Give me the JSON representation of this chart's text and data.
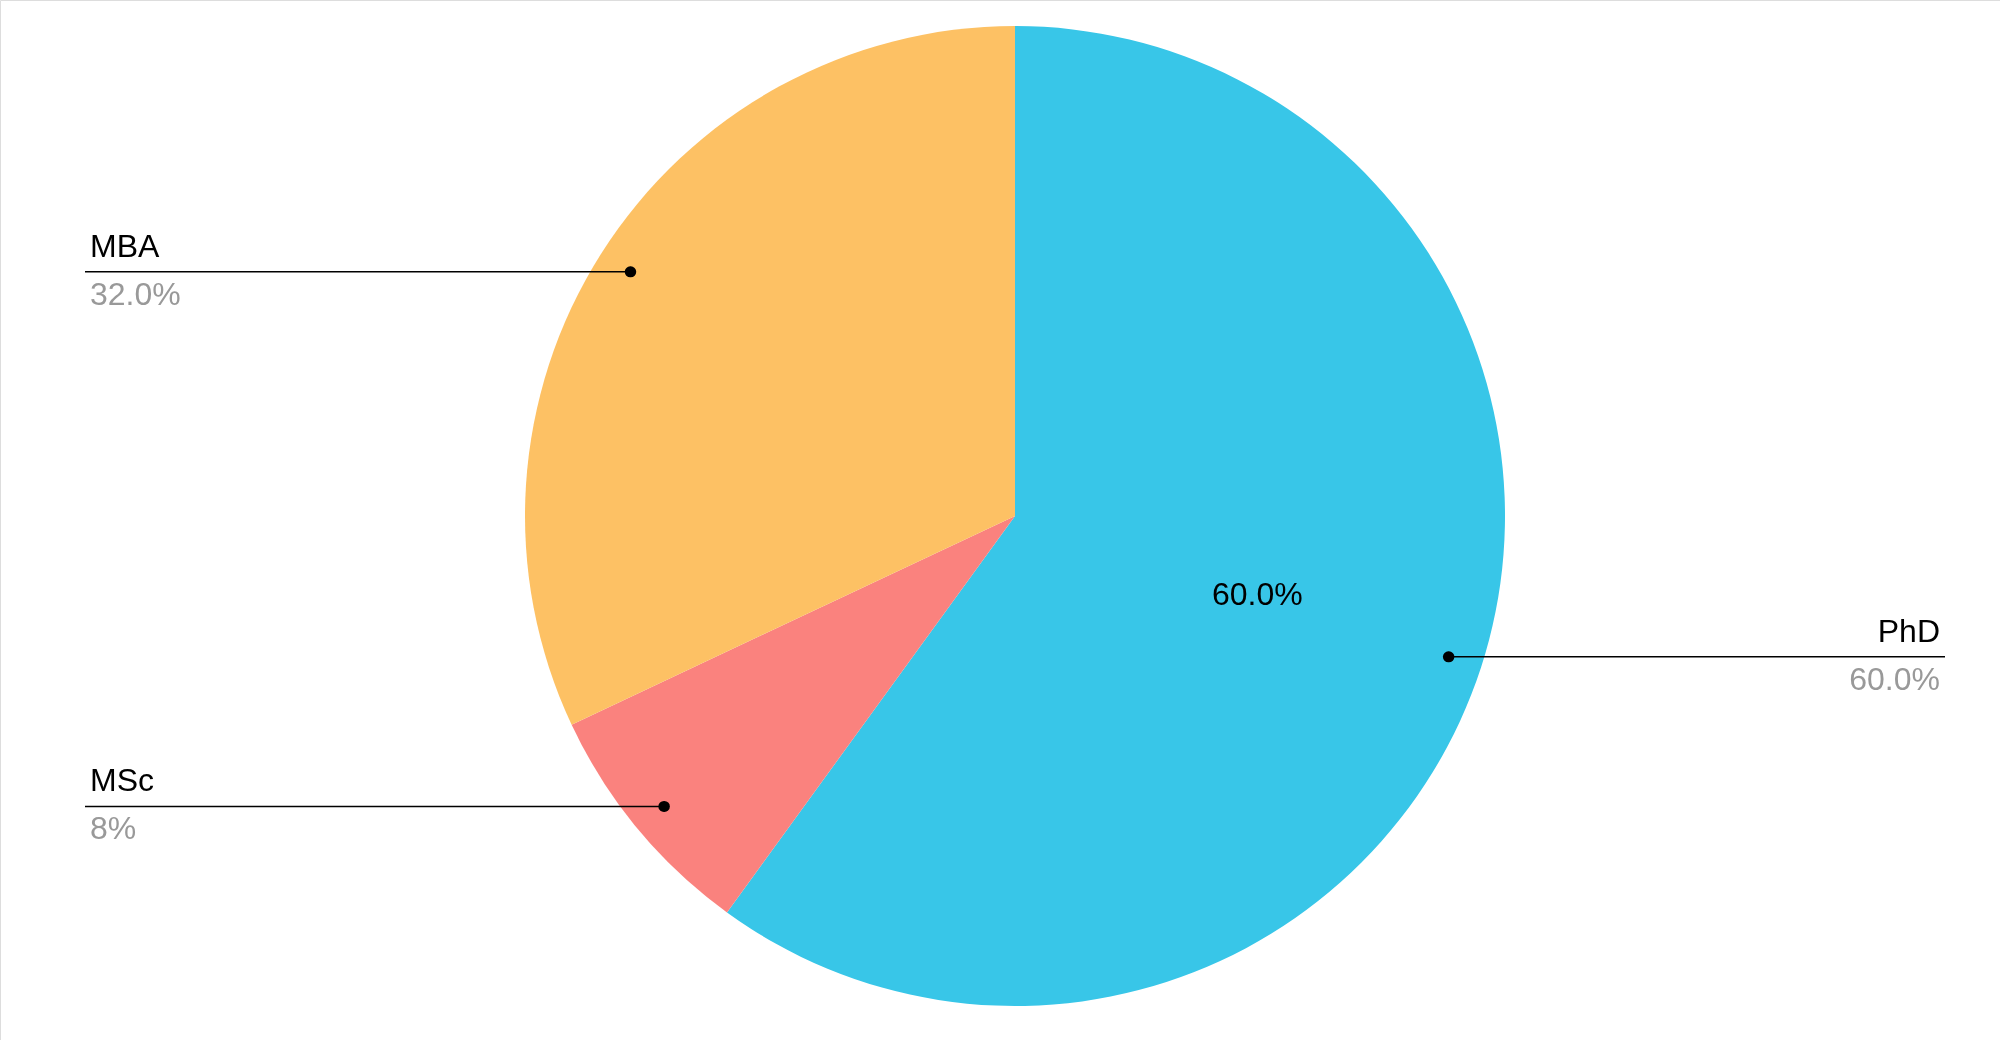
{
  "chart_data": {
    "type": "pie",
    "categories": [
      "PhD",
      "MSc",
      "MBA"
    ],
    "values": [
      60,
      8,
      32
    ],
    "colors": [
      "#38c6e8",
      "#fa827e",
      "#fdc164"
    ],
    "value_labels": [
      "60.0%",
      "8%",
      "32.0%"
    ],
    "annotations": [
      "60.0%"
    ]
  }
}
